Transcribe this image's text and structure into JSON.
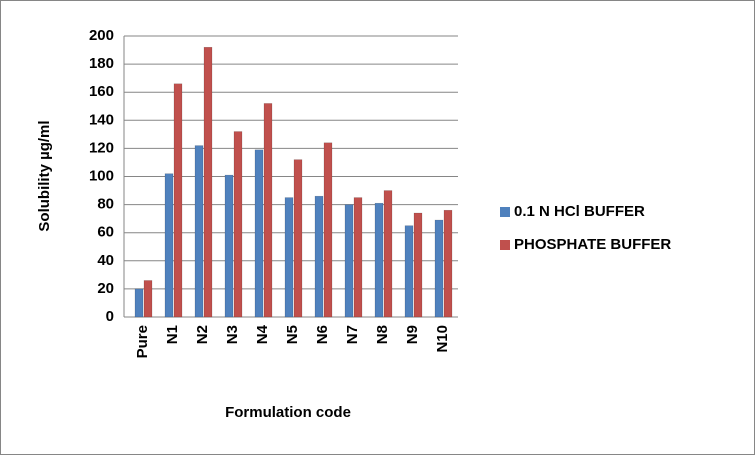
{
  "chart_data": {
    "type": "bar",
    "x_label": "Formulation code",
    "y_label": "Solubility µg/ml",
    "categories": [
      "Pure",
      "N1",
      "N2",
      "N3",
      "N4",
      "N5",
      "N6",
      "N7",
      "N8",
      "N9",
      "N10"
    ],
    "series": [
      {
        "name": "0.1 N HCl BUFFER",
        "color": "#4f81bd",
        "values": [
          20,
          102,
          122,
          101,
          119,
          85,
          86,
          80,
          81,
          65,
          69
        ]
      },
      {
        "name": "PHOSPHATE BUFFER",
        "color": "#c0504d",
        "values": [
          26,
          166,
          192,
          132,
          152,
          112,
          124,
          85,
          90,
          74,
          76
        ]
      }
    ],
    "ylim": [
      0,
      200
    ],
    "yticks": [
      0,
      20,
      40,
      60,
      80,
      100,
      120,
      140,
      160,
      180,
      200
    ],
    "grid": true,
    "legend": "right"
  }
}
